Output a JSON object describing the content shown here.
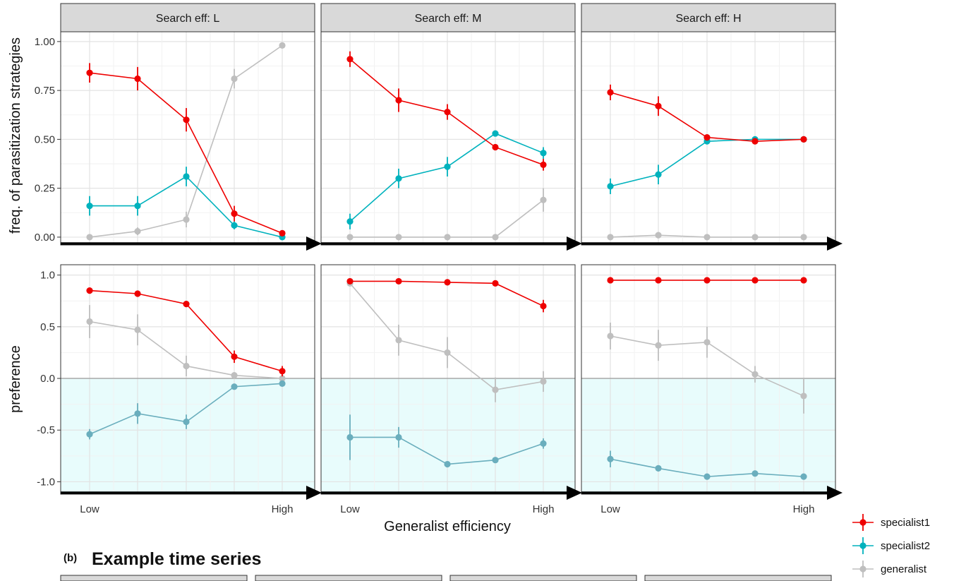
{
  "section_b": {
    "tag": "(b)",
    "title": "Example time series"
  },
  "y_titles": {
    "top": "freq. of parasitization strategies",
    "bottom": "preference"
  },
  "x_title": "Generalist efficiency",
  "x_tick_labels": {
    "low": "Low",
    "high": "High"
  },
  "legend": {
    "items": [
      {
        "key": "specialist1",
        "label": "specialist1",
        "color": "#ee0000"
      },
      {
        "key": "specialist2",
        "label": "specialist2",
        "color": "#00b2bd"
      },
      {
        "key": "generalist",
        "label": "generalist",
        "color": "#bfbfbf"
      }
    ]
  },
  "colors": {
    "specialist1": "#ee0000",
    "specialist2": "#00b2bd",
    "specialist2_pref": "#6aaebd",
    "generalist": "#bfbfbf",
    "negative_region": "#e8fcfc",
    "strip_bg": "#d9d9d9"
  },
  "chart_data": [
    {
      "type": "line",
      "row": "frequency",
      "facet": "Search eff: L",
      "y_ticks": [
        "1.00",
        "0.75",
        "0.50",
        "0.25",
        "0.00"
      ],
      "ylim": [
        -0.04,
        1.05
      ],
      "series": [
        {
          "key": "specialist1",
          "y": [
            0.84,
            0.81,
            0.6,
            0.12,
            0.02
          ],
          "err": [
            0.05,
            0.06,
            0.06,
            0.04,
            0.01
          ]
        },
        {
          "key": "specialist2",
          "y": [
            0.16,
            0.16,
            0.31,
            0.06,
            0.0
          ],
          "err": [
            0.05,
            0.05,
            0.05,
            0.02,
            0.01
          ]
        },
        {
          "key": "generalist",
          "y": [
            0.0,
            0.03,
            0.09,
            0.81,
            0.98
          ],
          "err": [
            0.01,
            0.02,
            0.04,
            0.05,
            0.01
          ]
        }
      ]
    },
    {
      "type": "line",
      "row": "frequency",
      "facet": "Search eff: M",
      "ylim": [
        -0.04,
        1.05
      ],
      "series": [
        {
          "key": "specialist1",
          "y": [
            0.91,
            0.7,
            0.64,
            0.46,
            0.37
          ],
          "err": [
            0.04,
            0.06,
            0.04,
            0.01,
            0.03
          ]
        },
        {
          "key": "specialist2",
          "y": [
            0.08,
            0.3,
            0.36,
            0.53,
            0.43
          ],
          "err": [
            0.04,
            0.05,
            0.05,
            0.01,
            0.03
          ]
        },
        {
          "key": "generalist",
          "y": [
            0.0,
            0.0,
            0.0,
            0.0,
            0.19
          ],
          "err": [
            0.0,
            0.0,
            0.0,
            0.0,
            0.06
          ]
        }
      ]
    },
    {
      "type": "line",
      "row": "frequency",
      "facet": "Search eff: H",
      "ylim": [
        -0.04,
        1.05
      ],
      "series": [
        {
          "key": "specialist1",
          "y": [
            0.74,
            0.67,
            0.51,
            0.49,
            0.5
          ],
          "err": [
            0.04,
            0.05,
            0.01,
            0.01,
            0.01
          ]
        },
        {
          "key": "specialist2",
          "y": [
            0.26,
            0.32,
            0.49,
            0.5,
            0.5
          ],
          "err": [
            0.04,
            0.05,
            0.01,
            0.01,
            0.01
          ]
        },
        {
          "key": "generalist",
          "y": [
            0.0,
            0.01,
            0.0,
            0.0,
            0.0
          ],
          "err": [
            0.0,
            0.01,
            0.0,
            0.0,
            0.0
          ]
        }
      ]
    },
    {
      "type": "line",
      "row": "preference",
      "facet": "Search eff: L",
      "y_ticks": [
        "1.0",
        "0.5",
        "0.0",
        "-0.5",
        "-1.0"
      ],
      "ylim": [
        -1.12,
        1.1
      ],
      "series": [
        {
          "key": "specialist1",
          "y": [
            0.85,
            0.82,
            0.72,
            0.21,
            0.07
          ],
          "err": [
            0.01,
            0.01,
            0.03,
            0.06,
            0.05
          ]
        },
        {
          "key": "specialist2",
          "y": [
            -0.54,
            -0.34,
            -0.42,
            -0.08,
            -0.05
          ],
          "err": [
            0.05,
            0.1,
            0.07,
            0.01,
            0.01
          ]
        },
        {
          "key": "generalist",
          "y": [
            0.55,
            0.47,
            0.12,
            0.03,
            0.0
          ],
          "err": [
            0.16,
            0.15,
            0.1,
            0.01,
            0.01
          ]
        }
      ]
    },
    {
      "type": "line",
      "row": "preference",
      "facet": "Search eff: M",
      "ylim": [
        -1.12,
        1.1
      ],
      "series": [
        {
          "key": "specialist1",
          "y": [
            0.94,
            0.94,
            0.93,
            0.92,
            0.7
          ],
          "err": [
            0.01,
            0.01,
            0.01,
            0.01,
            0.06
          ]
        },
        {
          "key": "specialist2",
          "y": [
            -0.57,
            -0.57,
            -0.83,
            -0.79,
            -0.63
          ],
          "err": [
            0.22,
            0.1,
            0.02,
            0.02,
            0.05
          ]
        },
        {
          "key": "generalist",
          "y": [
            0.92,
            0.37,
            0.25,
            -0.11,
            -0.03
          ],
          "err": [
            0.01,
            0.15,
            0.15,
            0.12,
            0.1
          ]
        }
      ]
    },
    {
      "type": "line",
      "row": "preference",
      "facet": "Search eff: H",
      "ylim": [
        -1.12,
        1.1
      ],
      "series": [
        {
          "key": "specialist1",
          "y": [
            0.95,
            0.95,
            0.95,
            0.95,
            0.95
          ],
          "err": [
            0.01,
            0.01,
            0.01,
            0.01,
            0.01
          ]
        },
        {
          "key": "specialist2",
          "y": [
            -0.78,
            -0.87,
            -0.95,
            -0.92,
            -0.95
          ],
          "err": [
            0.08,
            0.03,
            0.01,
            0.02,
            0.01
          ]
        },
        {
          "key": "generalist",
          "y": [
            0.41,
            0.32,
            0.35,
            0.04,
            -0.17
          ],
          "err": [
            0.13,
            0.15,
            0.15,
            0.08,
            0.17
          ]
        }
      ]
    }
  ]
}
